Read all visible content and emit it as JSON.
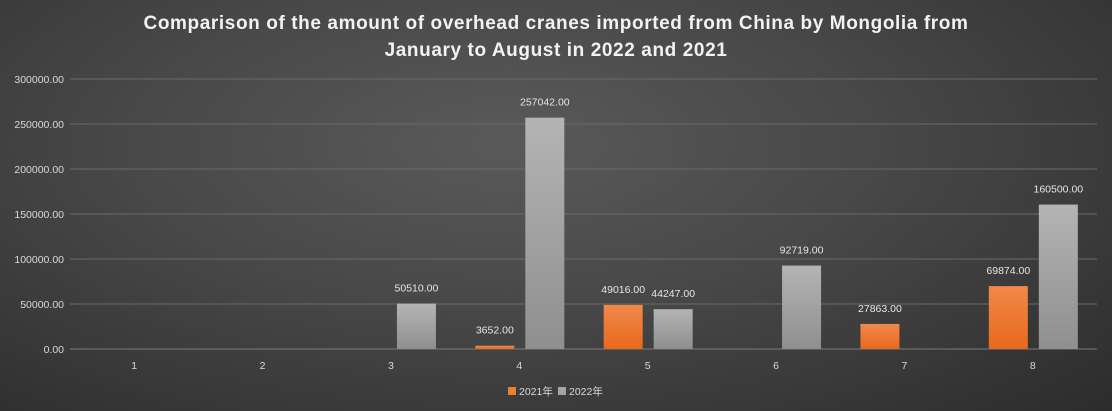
{
  "chart_data": {
    "type": "bar",
    "title": "Comparison of the amount of overhead cranes imported from China by Mongolia from January to August in 2022 and 2021",
    "title_lines": [
      "Comparison of the amount of overhead cranes imported from China by Mongolia from",
      "January to August in 2022 and 2021"
    ],
    "categories": [
      "1",
      "2",
      "3",
      "4",
      "5",
      "6",
      "7",
      "8"
    ],
    "series": [
      {
        "name": "2021年",
        "color": "#ed7d31",
        "values": [
          null,
          null,
          null,
          3652.0,
          49016.0,
          null,
          27863.0,
          69874.0
        ]
      },
      {
        "name": "2022年",
        "color": "#a5a5a5",
        "values": [
          null,
          null,
          50510.0,
          257042.0,
          44247.0,
          92719.0,
          null,
          160500.0
        ]
      }
    ],
    "y_ticks": [
      "0.00",
      "50000.00",
      "100000.00",
      "150000.00",
      "200000.00",
      "250000.00",
      "300000.00"
    ],
    "ylim": [
      0,
      300000
    ],
    "grid": true,
    "legend": "bottom",
    "xlabel": "",
    "ylabel": ""
  }
}
